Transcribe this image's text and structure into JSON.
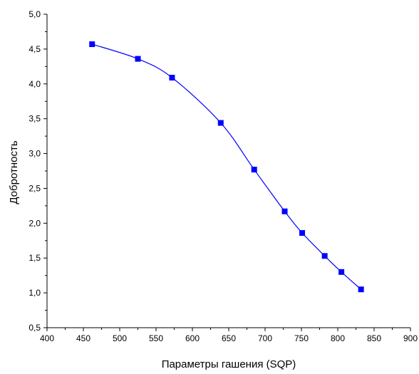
{
  "chart_data": {
    "type": "scatter",
    "title": "",
    "xlabel": "Параметры гашения (SQP)",
    "ylabel": "Добротность",
    "xlim": [
      400,
      900
    ],
    "ylim": [
      0.5,
      5.0
    ],
    "x_ticks": [
      "400",
      "450",
      "500",
      "550",
      "600",
      "650",
      "700",
      "750",
      "800",
      "850",
      "900"
    ],
    "y_ticks": [
      "0,5",
      "1,0",
      "1,5",
      "2,0",
      "2,5",
      "3,0",
      "3,5",
      "4,0",
      "4,5",
      "5,0"
    ],
    "grid": false,
    "legend": "none",
    "series": [
      {
        "x": [
          462,
          525,
          572,
          639,
          685,
          727,
          751,
          782,
          805,
          832
        ],
        "y": [
          4.57,
          4.36,
          4.09,
          3.44,
          2.77,
          2.17,
          1.86,
          1.53,
          1.3,
          1.05
        ],
        "fit_line": true,
        "color": "#0000ff",
        "marker": "square"
      }
    ]
  }
}
